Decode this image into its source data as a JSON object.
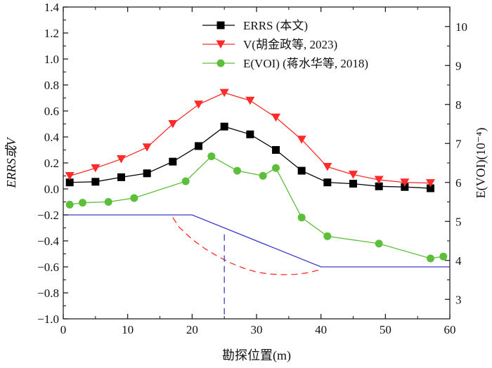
{
  "chart_data": {
    "type": "line",
    "xlabel": "勘探位置(m)",
    "ylabel": "ERRS或V",
    "y2label": "E(VOI)(10⁻⁴)",
    "xlim": [
      0,
      60
    ],
    "ylim": [
      -1.0,
      1.4
    ],
    "y2lim": [
      2.5,
      10.5
    ],
    "x_ticks": [
      "0",
      "10",
      "20",
      "30",
      "40",
      "50",
      "60"
    ],
    "y_ticks": [
      "1.4",
      "1.2",
      "1.0",
      "0.8",
      "0.6",
      "0.4",
      "0.2",
      "0.0",
      "−0.2",
      "−0.4",
      "−0.6",
      "−0.8",
      "−1.0"
    ],
    "y2_ticks": [
      "10",
      "9",
      "8",
      "7",
      "6",
      "5",
      "4",
      "3"
    ],
    "grid": false,
    "legend_position": "top-right",
    "series": [
      {
        "name": "ERRS (本文)",
        "axis": "left",
        "color": "#000000",
        "marker": "square",
        "x": [
          1,
          5,
          9,
          13,
          17,
          21,
          25,
          29,
          33,
          37,
          41,
          45,
          49,
          53,
          57
        ],
        "y": [
          0.05,
          0.055,
          0.09,
          0.12,
          0.21,
          0.33,
          0.48,
          0.42,
          0.3,
          0.14,
          0.05,
          0.04,
          0.02,
          0.015,
          0.005
        ]
      },
      {
        "name": "V(胡金政等, 2023)",
        "axis": "left",
        "color": "#ff2a2a",
        "marker": "triangle-down",
        "x": [
          1,
          5,
          9,
          13,
          17,
          21,
          25,
          29,
          33,
          37,
          41,
          45,
          49,
          53,
          57
        ],
        "y": [
          0.1,
          0.16,
          0.23,
          0.32,
          0.5,
          0.65,
          0.74,
          0.68,
          0.55,
          0.38,
          0.17,
          0.11,
          0.07,
          0.05,
          0.045
        ]
      },
      {
        "name": "E(VOI) (蒋水华等, 2018)",
        "axis": "right",
        "color": "#5cbf3a",
        "marker": "circle",
        "x": [
          1,
          3,
          7,
          11,
          19,
          23,
          27,
          31,
          33,
          37,
          41,
          49,
          57,
          59
        ],
        "y": [
          5.43,
          5.48,
          5.5,
          5.6,
          6.03,
          6.67,
          6.3,
          6.17,
          6.37,
          5.1,
          4.62,
          4.43,
          4.05,
          4.1
        ]
      }
    ],
    "overlays": [
      {
        "name": "slope surface",
        "style": "solid",
        "color": "#3a3ad0",
        "x": [
          0,
          20,
          40,
          60
        ],
        "y": [
          -0.2,
          -0.2,
          -0.6,
          -0.6
        ]
      },
      {
        "name": "slip surface",
        "style": "dashed",
        "color": "#ff2a2a",
        "x": [
          17,
          18,
          20,
          22,
          24,
          26,
          28,
          30,
          32,
          34,
          36,
          38,
          40
        ],
        "y": [
          -0.22,
          -0.295,
          -0.388,
          -0.46,
          -0.52,
          -0.57,
          -0.61,
          -0.64,
          -0.655,
          -0.66,
          -0.658,
          -0.645,
          -0.62
        ]
      },
      {
        "name": "critical position",
        "style": "dashed",
        "color": "#3a3ad0",
        "x": [
          25,
          25
        ],
        "y": [
          -0.35,
          -1.0
        ]
      }
    ]
  }
}
